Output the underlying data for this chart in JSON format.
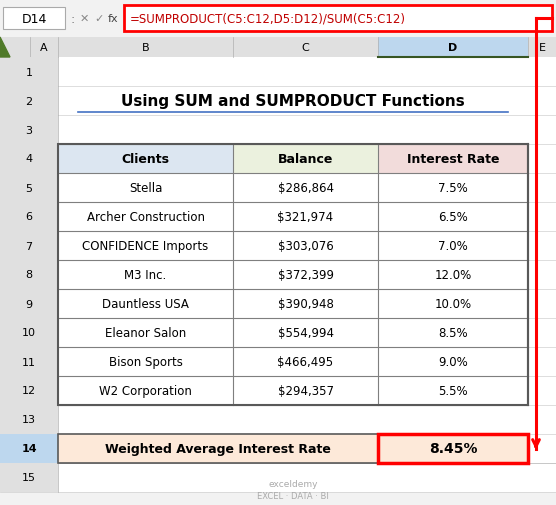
{
  "title": "Using SUM and SUMPRODUCT Functions",
  "formula_bar_cell": "D14",
  "formula_bar_text": "=SUMPRODUCT(C5:C12,D5:D12)/SUM(C5:C12)",
  "col_headers": [
    "Clients",
    "Balance",
    "Interest Rate"
  ],
  "col_header_bg": [
    "#dce6f1",
    "#ebf1de",
    "#f2dcdb"
  ],
  "rows": [
    [
      "Stella",
      "$286,864",
      "7.5%"
    ],
    [
      "Archer Construction",
      "$321,974",
      "6.5%"
    ],
    [
      "CONFIDENCE Imports",
      "$303,076",
      "7.0%"
    ],
    [
      "M3 Inc.",
      "$372,399",
      "12.0%"
    ],
    [
      "Dauntless USA",
      "$390,948",
      "10.0%"
    ],
    [
      "Eleanor Salon",
      "$554,994",
      "8.5%"
    ],
    [
      "Bison Sports",
      "$466,495",
      "9.0%"
    ],
    [
      "W2 Corporation",
      "$294,357",
      "5.5%"
    ]
  ],
  "summary_label": "Weighted Average Interest Rate",
  "summary_value": "8.45%",
  "summary_bg": "#fde9d9",
  "watermark_line1": "exceldemy",
  "watermark_line2": "EXCEL · DATA · BI",
  "row_numbers": [
    "1",
    "2",
    "3",
    "4",
    "5",
    "6",
    "7",
    "8",
    "9",
    "10",
    "11",
    "12",
    "13",
    "14",
    "15"
  ],
  "red_color": "#ff0000",
  "formula_text_color": "#c00000",
  "title_underline_color": "#4472c4",
  "col_letters": [
    "A",
    "B",
    "C",
    "D",
    "E"
  ],
  "toolbar_bg": "#f2f2f2",
  "header_col_bg": "#e0e0e0",
  "selected_col_bg": "#bdd7ee",
  "selected_row_bg": "#bdd7ee",
  "cell_bg": "#ffffff",
  "border_color": "#7f7f7f",
  "grid_color": "#d0d0d0"
}
